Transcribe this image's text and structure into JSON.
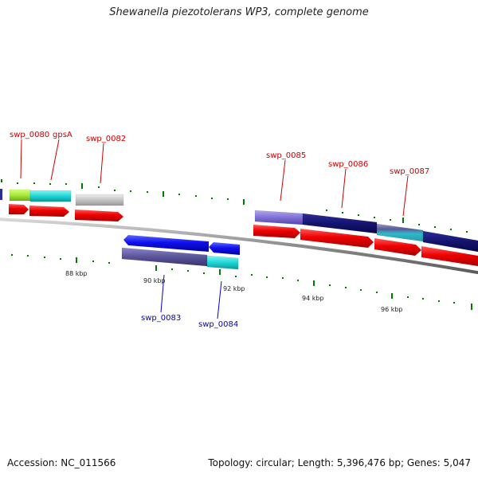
{
  "title": "Shewanella piezotolerans WP3, complete genome",
  "footer": {
    "accession": "Accession: NC_011566",
    "stats": "Topology: circular; Length: 5,396,476 bp; Genes: 5,047"
  },
  "colors": {
    "forward_label": "#cc0000",
    "reverse_label": "#0000cc",
    "tick": "#007a00",
    "backbone": "#8c8c8c"
  },
  "scale_labels": [
    "88 kbp",
    "90 kbp",
    "92 kbp",
    "94 kbp",
    "96 kbp"
  ],
  "forward_genes": [
    "swp_0080",
    "gpsA",
    "swp_0082",
    "swp_0085",
    "swp_0086",
    "swp_0087"
  ],
  "reverse_genes": [
    "swp_0083",
    "swp_0084"
  ]
}
